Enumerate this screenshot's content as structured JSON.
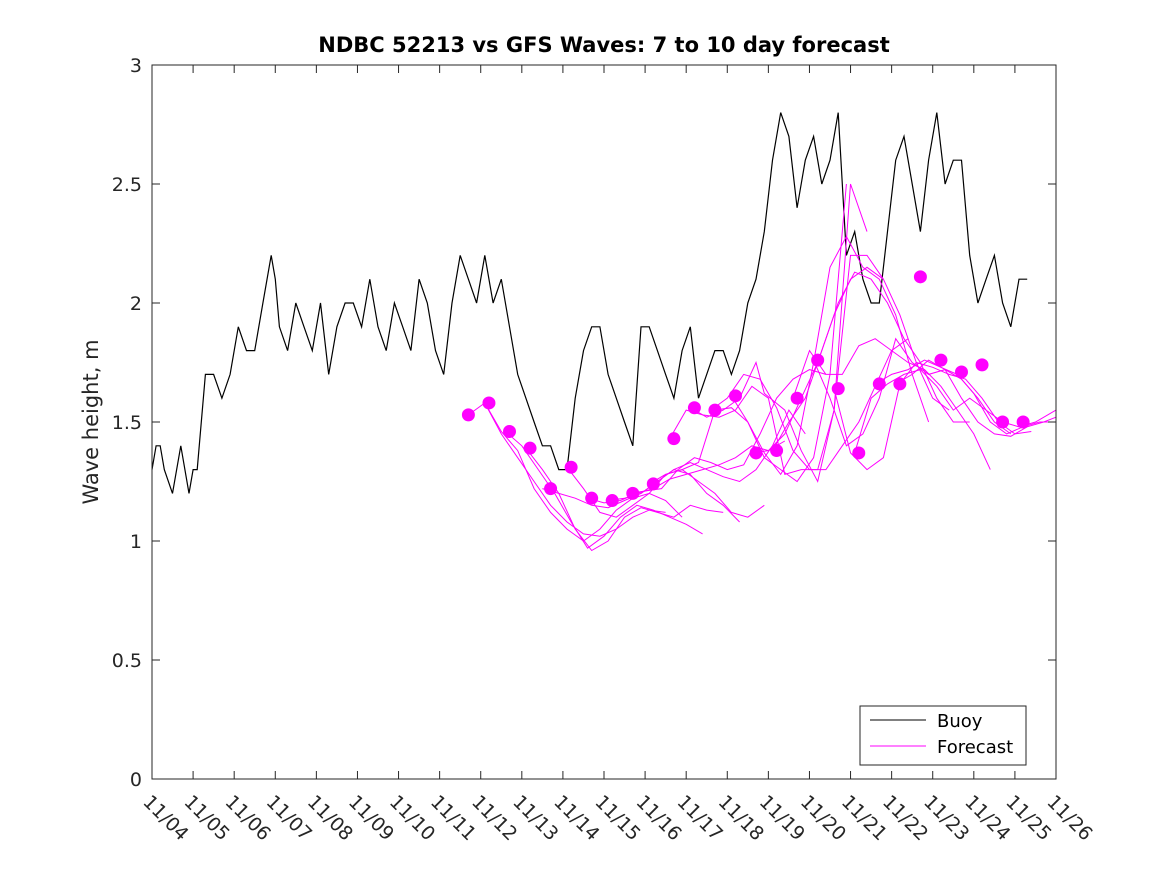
{
  "chart_data": {
    "type": "line",
    "title": "NDBC 52213 vs GFS Waves: 7 to 10 day forecast",
    "xlabel": "",
    "ylabel": "Wave height, m",
    "xlim": [
      0,
      22
    ],
    "ylim": [
      0,
      3
    ],
    "x_tick_labels": [
      "11/04",
      "11/05",
      "11/06",
      "11/07",
      "11/08",
      "11/09",
      "11/10",
      "11/11",
      "11/12",
      "11/13",
      "11/14",
      "11/15",
      "11/16",
      "11/17",
      "11/18",
      "11/19",
      "11/20",
      "11/21",
      "11/22",
      "11/23",
      "11/24",
      "11/25",
      "11/26"
    ],
    "y_ticks": [
      0,
      0.5,
      1,
      1.5,
      2,
      2.5,
      3
    ],
    "y_tick_labels": [
      "0",
      "0.5",
      "1",
      "1.5",
      "2",
      "2.5",
      "3"
    ],
    "grid": false,
    "legend": {
      "position": "bottom-right",
      "entries": [
        "Buoy",
        "Forecast"
      ]
    },
    "colors": {
      "buoy": "#000000",
      "forecast": "#ff00ff"
    },
    "series": [
      {
        "name": "Buoy",
        "x": [
          0.0,
          0.1,
          0.2,
          0.3,
          0.5,
          0.7,
          0.9,
          1.0,
          1.1,
          1.3,
          1.5,
          1.7,
          1.9,
          2.1,
          2.3,
          2.5,
          2.7,
          2.9,
          3.0,
          3.1,
          3.3,
          3.5,
          3.7,
          3.9,
          4.1,
          4.3,
          4.5,
          4.7,
          4.9,
          5.1,
          5.3,
          5.5,
          5.7,
          5.9,
          6.1,
          6.3,
          6.5,
          6.7,
          6.9,
          7.1,
          7.3,
          7.5,
          7.7,
          7.9,
          8.1,
          8.3,
          8.5,
          8.7,
          8.9,
          9.1,
          9.3,
          9.5,
          9.7,
          9.9,
          10.1,
          10.3,
          10.5,
          10.7,
          10.9,
          11.1,
          11.3,
          11.5,
          11.7,
          11.9,
          12.1,
          12.3,
          12.5,
          12.7,
          12.9,
          13.1,
          13.3,
          13.5,
          13.7,
          13.9,
          14.1,
          14.3,
          14.5,
          14.7,
          14.9,
          15.1,
          15.3,
          15.5,
          15.7,
          15.9,
          16.1,
          16.3,
          16.5,
          16.7,
          16.9,
          17.1,
          17.3,
          17.5,
          17.7,
          17.9,
          18.1,
          18.3,
          18.5,
          18.7,
          18.9,
          19.1,
          19.3,
          19.5,
          19.7,
          19.9,
          20.1,
          20.3,
          20.5,
          20.7,
          20.9,
          21.1,
          21.3
        ],
        "y": [
          1.3,
          1.4,
          1.4,
          1.3,
          1.2,
          1.4,
          1.2,
          1.3,
          1.3,
          1.7,
          1.7,
          1.6,
          1.7,
          1.9,
          1.8,
          1.8,
          2.0,
          2.2,
          2.1,
          1.9,
          1.8,
          2.0,
          1.9,
          1.8,
          2.0,
          1.7,
          1.9,
          2.0,
          2.0,
          1.9,
          2.1,
          1.9,
          1.8,
          2.0,
          1.9,
          1.8,
          2.1,
          2.0,
          1.8,
          1.7,
          2.0,
          2.2,
          2.1,
          2.0,
          2.2,
          2.0,
          2.1,
          1.9,
          1.7,
          1.6,
          1.5,
          1.4,
          1.4,
          1.3,
          1.3,
          1.6,
          1.8,
          1.9,
          1.9,
          1.7,
          1.6,
          1.5,
          1.4,
          1.9,
          1.9,
          1.8,
          1.7,
          1.6,
          1.8,
          1.9,
          1.6,
          1.7,
          1.8,
          1.8,
          1.7,
          1.8,
          2.0,
          2.1,
          2.3,
          2.6,
          2.8,
          2.7,
          2.4,
          2.6,
          2.7,
          2.5,
          2.6,
          2.8,
          2.2,
          2.3,
          2.1,
          2.0,
          2.0,
          2.3,
          2.6,
          2.7,
          2.5,
          2.3,
          2.6,
          2.8,
          2.5,
          2.6,
          2.6,
          2.2,
          2.0,
          2.1,
          2.2,
          2.0,
          1.9,
          2.1,
          2.1
        ]
      },
      {
        "name": "Forecast",
        "segments": [
          {
            "x": [
              7.7,
              8.1,
              8.5,
              8.9,
              9.3,
              9.7,
              10.1,
              10.5,
              10.9,
              11.3,
              11.7,
              12.1,
              12.5
            ],
            "y": [
              1.53,
              1.58,
              1.45,
              1.35,
              1.25,
              1.15,
              1.08,
              1.03,
              1.02,
              1.05,
              1.1,
              1.13,
              1.12
            ]
          },
          {
            "x": [
              8.1,
              8.5,
              8.9,
              9.3,
              9.7,
              10.1,
              10.5,
              10.9,
              11.3,
              11.7,
              12.1,
              12.5,
              12.9
            ],
            "y": [
              1.58,
              1.46,
              1.38,
              1.22,
              1.12,
              1.05,
              1.0,
              1.05,
              1.13,
              1.18,
              1.2,
              1.17,
              1.1
            ]
          },
          {
            "x": [
              8.6,
              9.0,
              9.4,
              9.8,
              10.2,
              10.6,
              11.0,
              11.4,
              11.8,
              12.2,
              12.6,
              13.0,
              13.4
            ],
            "y": [
              1.46,
              1.4,
              1.3,
              1.2,
              1.08,
              0.97,
              1.02,
              1.1,
              1.15,
              1.13,
              1.1,
              1.07,
              1.03
            ]
          },
          {
            "x": [
              9.1,
              9.5,
              9.9,
              10.3,
              10.7,
              11.1,
              11.5,
              11.9,
              12.3,
              12.7,
              13.1,
              13.5,
              13.9
            ],
            "y": [
              1.39,
              1.3,
              1.2,
              1.05,
              0.96,
              1.0,
              1.1,
              1.14,
              1.12,
              1.1,
              1.15,
              1.13,
              1.12
            ]
          },
          {
            "x": [
              9.5,
              9.9,
              10.3,
              10.7,
              11.1,
              11.5,
              11.9,
              12.3,
              12.7,
              13.1,
              13.5,
              13.9,
              14.3
            ],
            "y": [
              1.22,
              1.2,
              1.18,
              1.15,
              1.14,
              1.17,
              1.2,
              1.25,
              1.3,
              1.28,
              1.2,
              1.15,
              1.08
            ]
          },
          {
            "x": [
              10.1,
              10.5,
              10.9,
              11.3,
              11.7,
              12.1,
              12.5,
              12.9,
              13.3,
              13.7,
              14.1,
              14.5,
              14.9
            ],
            "y": [
              1.31,
              1.22,
              1.12,
              1.1,
              1.15,
              1.2,
              1.28,
              1.3,
              1.25,
              1.2,
              1.12,
              1.1,
              1.15
            ]
          },
          {
            "x": [
              10.6,
              11.0,
              11.4,
              11.8,
              12.2,
              12.6,
              13.0,
              13.4,
              13.8,
              14.2,
              14.6,
              15.0,
              15.4
            ],
            "y": [
              1.18,
              1.16,
              1.17,
              1.2,
              1.22,
              1.26,
              1.28,
              1.3,
              1.32,
              1.35,
              1.4,
              1.38,
              1.42
            ]
          },
          {
            "x": [
              11.1,
              11.5,
              11.9,
              12.3,
              12.7,
              13.1,
              13.5,
              13.9,
              14.3,
              14.7,
              15.1,
              15.5,
              15.9
            ],
            "y": [
              1.17,
              1.18,
              1.2,
              1.25,
              1.3,
              1.33,
              1.3,
              1.27,
              1.25,
              1.3,
              1.4,
              1.55,
              1.45
            ]
          },
          {
            "x": [
              11.6,
              12.0,
              12.4,
              12.8,
              13.2,
              13.6,
              14.0,
              14.4,
              14.8,
              15.2,
              15.6,
              16.0,
              16.4
            ],
            "y": [
              1.2,
              1.21,
              1.22,
              1.3,
              1.35,
              1.33,
              1.3,
              1.32,
              1.45,
              1.6,
              1.68,
              1.72,
              1.7
            ]
          },
          {
            "x": [
              12.1,
              12.5,
              12.9,
              13.3,
              13.7,
              14.1,
              14.5,
              14.9,
              15.3,
              15.7,
              16.1,
              16.5,
              16.9
            ],
            "y": [
              1.24,
              1.28,
              1.3,
              1.33,
              1.55,
              1.56,
              1.5,
              1.35,
              1.3,
              1.25,
              1.35,
              1.7,
              2.5
            ]
          },
          {
            "x": [
              12.6,
              13.0,
              13.4,
              13.8,
              14.2,
              14.6,
              15.0,
              15.4,
              15.8,
              16.2,
              16.6,
              17.0,
              17.4
            ],
            "y": [
              1.43,
              1.55,
              1.53,
              1.52,
              1.55,
              1.65,
              1.6,
              1.28,
              1.3,
              1.3,
              1.55,
              2.5,
              2.3
            ]
          },
          {
            "x": [
              13.1,
              13.5,
              13.9,
              14.3,
              14.7,
              14.9,
              15.4,
              15.8,
              16.2,
              16.6,
              17.0,
              17.4,
              17.8
            ],
            "y": [
              1.56,
              1.52,
              1.55,
              1.6,
              1.75,
              1.62,
              1.55,
              1.38,
              1.25,
              1.55,
              2.2,
              2.2,
              2.1
            ]
          },
          {
            "x": [
              13.6,
              14.0,
              14.4,
              14.8,
              15.2,
              15.6,
              16.0,
              16.4,
              16.8,
              17.2,
              17.6,
              18.0,
              18.4
            ],
            "y": [
              1.55,
              1.6,
              1.7,
              1.68,
              1.56,
              1.38,
              1.3,
              1.3,
              1.4,
              1.5,
              1.65,
              1.8,
              1.85
            ]
          },
          {
            "x": [
              14.1,
              14.5,
              14.9,
              15.3,
              15.7,
              16.1,
              16.5,
              16.9,
              17.3,
              17.7,
              18.1,
              18.5,
              18.9
            ],
            "y": [
              1.61,
              1.5,
              1.37,
              1.28,
              1.4,
              1.75,
              2.15,
              2.28,
              2.15,
              2.1,
              1.95,
              1.7,
              1.5
            ]
          },
          {
            "x": [
              14.6,
              15.0,
              15.4,
              15.8,
              16.2,
              16.6,
              17.0,
              17.4,
              17.8,
              18.2,
              18.6,
              19.0,
              19.4
            ],
            "y": [
              1.37,
              1.38,
              1.45,
              1.6,
              1.75,
              1.95,
              2.1,
              2.15,
              2.1,
              1.95,
              1.75,
              1.6,
              1.55
            ]
          },
          {
            "x": [
              15.1,
              15.5,
              15.9,
              16.3,
              16.7,
              17.1,
              17.5,
              17.9,
              18.3,
              18.7,
              19.1,
              19.5,
              19.9
            ],
            "y": [
              1.38,
              1.5,
              1.6,
              1.8,
              2.0,
              2.13,
              2.1,
              2.0,
              1.85,
              1.75,
              1.6,
              1.5,
              1.5
            ]
          },
          {
            "x": [
              15.6,
              16.0,
              16.4,
              16.8,
              17.2,
              17.6,
              18.0,
              18.4,
              18.8,
              19.2,
              19.6,
              20.0,
              20.4
            ],
            "y": [
              1.6,
              1.8,
              1.7,
              1.7,
              1.82,
              1.85,
              1.8,
              1.75,
              1.72,
              1.65,
              1.55,
              1.45,
              1.3
            ]
          },
          {
            "x": [
              16.1,
              16.5,
              16.9,
              17.3,
              17.7,
              18.1,
              18.5,
              18.9,
              19.3,
              19.7,
              20.1,
              20.5,
              20.9
            ],
            "y": [
              1.76,
              1.6,
              1.4,
              1.45,
              1.6,
              1.85,
              1.75,
              1.7,
              1.72,
              1.68,
              1.6,
              1.5,
              1.45
            ]
          },
          {
            "x": [
              16.6,
              17.0,
              17.4,
              17.8,
              18.2,
              18.6,
              19.0,
              19.4,
              19.8,
              20.2,
              20.6,
              21.0,
              21.4
            ],
            "y": [
              1.64,
              1.37,
              1.3,
              1.35,
              1.66,
              1.75,
              1.73,
              1.7,
              1.68,
              1.6,
              1.5,
              1.45,
              1.46
            ]
          },
          {
            "x": [
              17.1,
              17.5,
              17.9,
              18.3,
              18.7,
              19.1,
              19.5,
              19.9,
              20.3,
              20.7,
              21.1,
              21.5,
              22.0
            ],
            "y": [
              1.37,
              1.6,
              1.66,
              1.7,
              1.72,
              1.65,
              1.55,
              1.6,
              1.55,
              1.5,
              1.48,
              1.5,
              1.55
            ]
          },
          {
            "x": [
              17.6,
              18.0,
              18.4,
              18.8,
              19.2,
              19.6,
              20.0,
              20.4,
              20.8,
              21.2,
              21.6,
              22.0
            ],
            "y": [
              1.66,
              1.7,
              1.72,
              1.76,
              1.73,
              1.7,
              1.62,
              1.5,
              1.45,
              1.48,
              1.5,
              1.5
            ]
          },
          {
            "x": [
              18.1,
              18.5,
              18.9,
              19.3,
              19.7,
              20.1,
              20.5,
              20.9,
              21.3,
              21.7,
              22.0
            ],
            "y": [
              1.66,
              1.7,
              1.76,
              1.72,
              1.6,
              1.5,
              1.45,
              1.44,
              1.48,
              1.5,
              1.52
            ]
          }
        ],
        "markers": {
          "x": [
            7.7,
            8.2,
            8.7,
            9.2,
            9.7,
            10.2,
            10.7,
            11.2,
            11.7,
            12.2,
            12.7,
            13.2,
            13.7,
            14.2,
            14.7,
            15.2,
            15.7,
            16.2,
            16.7,
            17.2,
            17.7,
            18.2,
            18.7,
            19.2,
            19.7,
            20.2,
            20.7,
            21.2
          ],
          "y": [
            1.53,
            1.58,
            1.46,
            1.39,
            1.22,
            1.31,
            1.18,
            1.17,
            1.2,
            1.24,
            1.43,
            1.56,
            1.55,
            1.61,
            1.37,
            1.38,
            1.6,
            1.76,
            1.64,
            1.37,
            1.66,
            1.66,
            2.11,
            1.76,
            1.71,
            1.74,
            1.5,
            1.5
          ]
        }
      }
    ]
  }
}
